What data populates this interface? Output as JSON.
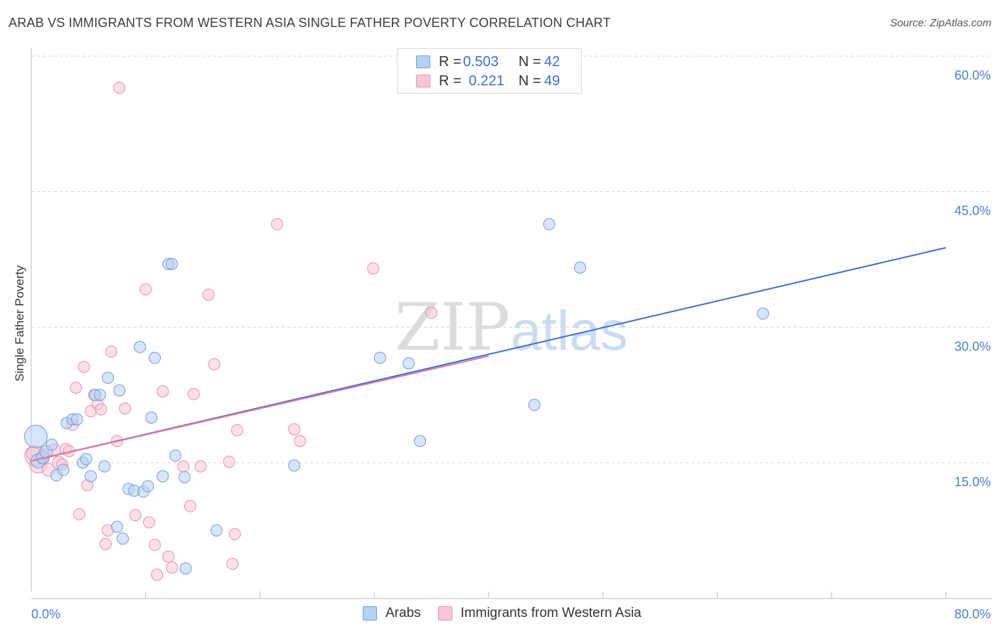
{
  "title": "ARAB VS IMMIGRANTS FROM WESTERN ASIA SINGLE FATHER POVERTY CORRELATION CHART",
  "source": "Source: ZipAtlas.com",
  "watermark": {
    "zip": "ZIP",
    "atlas": "atlas"
  },
  "legend": {
    "rows": [
      {
        "r_label": "R =",
        "r_value": "0.503",
        "n_label": "N =",
        "n_value": "42"
      },
      {
        "r_label": "R =",
        "r_value": "0.221",
        "n_label": "N =",
        "n_value": "49"
      }
    ]
  },
  "bottom_legend": {
    "series1": "Arabs",
    "series2": "Immigrants from Western Asia"
  },
  "chart_data": {
    "type": "scatter",
    "title": "ARAB VS IMMIGRANTS FROM WESTERN ASIA SINGLE FATHER POVERTY CORRELATION CHART",
    "xlabel": "",
    "ylabel": "Single Father Poverty",
    "xlim": [
      0,
      80
    ],
    "ylim": [
      0,
      62
    ],
    "x_tick_labels": [
      "0.0%",
      "80.0%"
    ],
    "y_tick_labels": [
      "15.0%",
      "30.0%",
      "45.0%",
      "60.0%"
    ],
    "y_ticks": [
      15,
      30,
      45,
      60
    ],
    "grid": "horizontal dashed",
    "legend_position": "top-center",
    "colors": {
      "series1": "#6f9fe0",
      "series1_fill": "#b7d0f3",
      "series2": "#e990ae",
      "series2_fill": "#f8c7d7",
      "trend1": "#3a6fcc",
      "trend2": "#e07aa0",
      "tick_text": "#4a7fd4"
    },
    "series": [
      {
        "name": "Arabs",
        "trend": {
          "x0": 0,
          "y0": 15.2,
          "x1": 80,
          "y1": 38.8
        },
        "points": [
          [
            0.4,
            17.9,
            16
          ],
          [
            0.6,
            15.2,
            10
          ],
          [
            1.0,
            15.6,
            9
          ],
          [
            1.3,
            16.2,
            9
          ],
          [
            1.8,
            17.0,
            8
          ],
          [
            2.2,
            13.6,
            8
          ],
          [
            2.8,
            14.2,
            8
          ],
          [
            3.1,
            19.4,
            8
          ],
          [
            3.6,
            19.8,
            8
          ],
          [
            4.0,
            19.8,
            8
          ],
          [
            4.5,
            15.0,
            8
          ],
          [
            4.8,
            15.4,
            8
          ],
          [
            5.2,
            13.5,
            8
          ],
          [
            5.6,
            22.5,
            8
          ],
          [
            6.0,
            22.5,
            8
          ],
          [
            6.4,
            14.6,
            8
          ],
          [
            6.7,
            24.4,
            8
          ],
          [
            7.5,
            7.9,
            8
          ],
          [
            7.7,
            23.0,
            8
          ],
          [
            8.0,
            6.6,
            8
          ],
          [
            8.5,
            12.1,
            8
          ],
          [
            9.0,
            11.9,
            8
          ],
          [
            9.5,
            27.8,
            8
          ],
          [
            9.8,
            11.8,
            8
          ],
          [
            10.2,
            12.4,
            8
          ],
          [
            10.5,
            20.0,
            8
          ],
          [
            10.8,
            26.6,
            8
          ],
          [
            11.5,
            13.5,
            8
          ],
          [
            12.0,
            37.0,
            8
          ],
          [
            12.3,
            37.0,
            8
          ],
          [
            12.6,
            15.8,
            8
          ],
          [
            13.4,
            13.4,
            8
          ],
          [
            13.5,
            3.3,
            8
          ],
          [
            16.2,
            7.5,
            8
          ],
          [
            23.0,
            14.7,
            8
          ],
          [
            30.5,
            26.6,
            8
          ],
          [
            33.0,
            26.0,
            8
          ],
          [
            34.0,
            17.4,
            8
          ],
          [
            44.0,
            21.4,
            8
          ],
          [
            45.3,
            41.4,
            8
          ],
          [
            48.0,
            36.6,
            8
          ],
          [
            64.0,
            31.5,
            8
          ]
        ]
      },
      {
        "name": "Immigrants from Western Asia",
        "trend": {
          "x0": 0,
          "y0": 15.2,
          "x1": 40,
          "y1": 26.8
        },
        "points": [
          [
            0.3,
            15.8,
            14
          ],
          [
            0.6,
            14.8,
            12
          ],
          [
            1.0,
            15.5,
            9
          ],
          [
            1.5,
            14.2,
            9
          ],
          [
            2.0,
            16.4,
            9
          ],
          [
            2.4,
            15.0,
            9
          ],
          [
            2.7,
            14.8,
            8
          ],
          [
            3.0,
            16.5,
            8
          ],
          [
            3.3,
            16.3,
            8
          ],
          [
            3.6,
            19.2,
            8
          ],
          [
            3.9,
            23.3,
            8
          ],
          [
            4.2,
            9.3,
            8
          ],
          [
            4.6,
            25.6,
            8
          ],
          [
            4.9,
            12.5,
            8
          ],
          [
            5.2,
            20.7,
            8
          ],
          [
            5.5,
            22.5,
            8
          ],
          [
            5.8,
            21.5,
            8
          ],
          [
            6.1,
            20.9,
            8
          ],
          [
            6.5,
            6.0,
            8
          ],
          [
            6.7,
            7.5,
            8
          ],
          [
            7.0,
            27.3,
            8
          ],
          [
            7.5,
            17.4,
            8
          ],
          [
            7.7,
            56.5,
            8
          ],
          [
            8.2,
            21.0,
            8
          ],
          [
            9.1,
            9.2,
            8
          ],
          [
            10.0,
            34.2,
            8
          ],
          [
            10.3,
            8.4,
            8
          ],
          [
            10.8,
            5.9,
            8
          ],
          [
            11.0,
            2.6,
            8
          ],
          [
            11.5,
            22.9,
            8
          ],
          [
            12.0,
            4.6,
            8
          ],
          [
            12.3,
            3.4,
            8
          ],
          [
            13.3,
            14.6,
            8
          ],
          [
            13.9,
            10.2,
            8
          ],
          [
            14.2,
            22.6,
            8
          ],
          [
            14.8,
            14.6,
            8
          ],
          [
            15.5,
            33.6,
            8
          ],
          [
            16.0,
            25.9,
            8
          ],
          [
            17.3,
            15.1,
            8
          ],
          [
            17.6,
            3.8,
            8
          ],
          [
            17.8,
            7.1,
            8
          ],
          [
            18.0,
            18.6,
            8
          ],
          [
            21.5,
            41.4,
            8
          ],
          [
            23.0,
            18.7,
            8
          ],
          [
            23.5,
            17.4,
            8
          ],
          [
            29.9,
            36.5,
            8
          ],
          [
            35.0,
            31.6,
            8
          ],
          [
            0.2,
            16.0,
            10
          ],
          [
            1.1,
            15.9,
            8
          ]
        ]
      }
    ]
  }
}
